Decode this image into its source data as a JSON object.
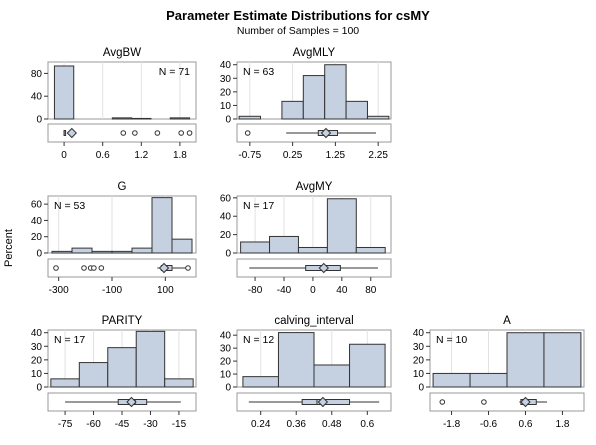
{
  "title": "Parameter Estimate Distributions for csMY",
  "subtitle": "Number of Samples = 100",
  "ylabel": "Percent",
  "colors": {
    "bar_fill": "#c5d0e0",
    "bar_stroke": "#333333",
    "diamond_fill": "#c5d0e0",
    "grid": "#e2e2e2"
  },
  "chart_data": [
    {
      "type": "bar",
      "name": "AvgBW",
      "annotation": "N = 71",
      "annotation_position": "top-right",
      "bin_edges": [
        -0.15,
        0.15,
        0.45,
        0.75,
        1.05,
        1.35,
        1.65,
        1.95
      ],
      "values": [
        93,
        0,
        0,
        2,
        1,
        0,
        2
      ],
      "ylim": [
        0,
        100
      ],
      "yticks": [
        0,
        40,
        80
      ],
      "xlim": [
        -0.25,
        2.05
      ],
      "xticks": [
        0,
        0.6,
        1.2,
        1.8
      ],
      "xtick_labels": [
        "0",
        "0.6",
        "1.2",
        "1.8"
      ],
      "box": {
        "q1": 0,
        "median": 0,
        "q3": 0.01,
        "mean": 0.12,
        "whisker_low": 0,
        "whisker_high": 0.02,
        "outliers": [
          0.92,
          1.1,
          1.45,
          1.82,
          1.95
        ]
      }
    },
    {
      "type": "bar",
      "name": "AvgMLY",
      "annotation": "N = 63",
      "annotation_position": "top-left",
      "bin_edges": [
        -1,
        -0.5,
        0,
        0.5,
        1,
        1.5,
        2,
        2.5
      ],
      "values": [
        2,
        0,
        13,
        32,
        40,
        13,
        2
      ],
      "ylim": [
        0,
        42
      ],
      "yticks": [
        0,
        10,
        20,
        30,
        40
      ],
      "xlim": [
        -1.05,
        2.55
      ],
      "xticks": [
        -0.75,
        0.25,
        1.25,
        2.25
      ],
      "xtick_labels": [
        "-0.75",
        "0.25",
        "1.25",
        "2.25"
      ],
      "box": {
        "q1": 0.85,
        "median": 1.05,
        "q3": 1.3,
        "mean": 1.03,
        "whisker_low": 0.1,
        "whisker_high": 2.2,
        "outliers": [
          -0.8
        ]
      }
    },
    {
      "type": "bar",
      "name": "G",
      "annotation": "N = 53",
      "annotation_position": "top-left",
      "bin_edges": [
        -325,
        -250,
        -175,
        -100,
        -25,
        50,
        125,
        200
      ],
      "values": [
        2,
        6,
        2,
        2,
        6,
        68,
        17
      ],
      "ylim": [
        0,
        70
      ],
      "yticks": [
        0,
        20,
        40,
        60
      ],
      "xlim": [
        -340,
        215
      ],
      "xticks": [
        -300,
        -100,
        100
      ],
      "xtick_labels": [
        "-300",
        "-100",
        "100"
      ],
      "box": {
        "q1": 85,
        "median": 105,
        "q3": 125,
        "mean": 95,
        "whisker_low": 70,
        "whisker_high": 180,
        "outliers": [
          -310,
          -205,
          -180,
          -168,
          -140,
          185
        ]
      }
    },
    {
      "type": "bar",
      "name": "AvgMY",
      "annotation": "N = 17",
      "annotation_position": "top-left",
      "bin_edges": [
        -100,
        -60,
        -20,
        20,
        60,
        100
      ],
      "values": [
        12,
        18,
        6,
        59,
        6
      ],
      "ylim": [
        0,
        62
      ],
      "yticks": [
        0,
        20,
        40,
        60
      ],
      "xlim": [
        -105,
        108
      ],
      "xticks": [
        -80,
        -40,
        0,
        40,
        80
      ],
      "xtick_labels": [
        "-80",
        "-40",
        "0",
        "40",
        "80"
      ],
      "box": {
        "q1": -10,
        "median": 18,
        "q3": 38,
        "mean": 15,
        "whisker_low": -88,
        "whisker_high": 90,
        "outliers": []
      }
    },
    {
      "type": "bar",
      "name": "PARITY",
      "annotation": "N = 17",
      "annotation_position": "top-left",
      "bin_edges": [
        -82.5,
        -67.5,
        -52.5,
        -37.5,
        -22.5,
        -7.5
      ],
      "values": [
        6,
        18,
        29,
        41,
        6
      ],
      "ylim": [
        0,
        42
      ],
      "yticks": [
        0,
        10,
        20,
        30,
        40
      ],
      "xlim": [
        -84,
        -6
      ],
      "xticks": [
        -75,
        -60,
        -45,
        -30,
        -15
      ],
      "xtick_labels": [
        "-75",
        "-60",
        "-45",
        "-30",
        "-15"
      ],
      "box": {
        "q1": -47,
        "median": -38,
        "q3": -32,
        "mean": -40,
        "whisker_low": -75,
        "whisker_high": -14,
        "outliers": []
      }
    },
    {
      "type": "bar",
      "name": "calving_interval",
      "annotation": "N = 12",
      "annotation_position": "top-left",
      "bin_edges": [
        0.18,
        0.3,
        0.42,
        0.54,
        0.66
      ],
      "values": [
        8,
        42,
        17,
        33
      ],
      "ylim": [
        0,
        44
      ],
      "yticks": [
        0,
        10,
        20,
        30,
        40
      ],
      "xlim": [
        0.16,
        0.68
      ],
      "xticks": [
        0.24,
        0.36,
        0.48,
        0.6
      ],
      "xtick_labels": [
        "0.24",
        "0.36",
        "0.48",
        "0.6"
      ],
      "box": {
        "q1": 0.38,
        "median": 0.43,
        "q3": 0.54,
        "mean": 0.45,
        "whisker_low": 0.2,
        "whisker_high": 0.64,
        "outliers": []
      }
    },
    {
      "type": "bar",
      "name": "A",
      "annotation": "N = 10",
      "annotation_position": "top-left",
      "bin_edges": [
        -2.4,
        -1.2,
        0,
        1.2,
        2.4
      ],
      "values": [
        10,
        10,
        40,
        40
      ],
      "ylim": [
        0,
        42
      ],
      "yticks": [
        0,
        10,
        20,
        30,
        40
      ],
      "xlim": [
        -2.5,
        2.5
      ],
      "xticks": [
        -1.8,
        -0.6,
        0.6,
        1.8
      ],
      "xtick_labels": [
        "-1.8",
        "-0.6",
        "0.6",
        "1.8"
      ],
      "box": {
        "q1": 0.45,
        "median": 0.6,
        "q3": 0.95,
        "mean": 0.6,
        "whisker_low": 0.4,
        "whisker_high": 1.3,
        "outliers": [
          -2.1,
          -0.75
        ]
      }
    }
  ]
}
